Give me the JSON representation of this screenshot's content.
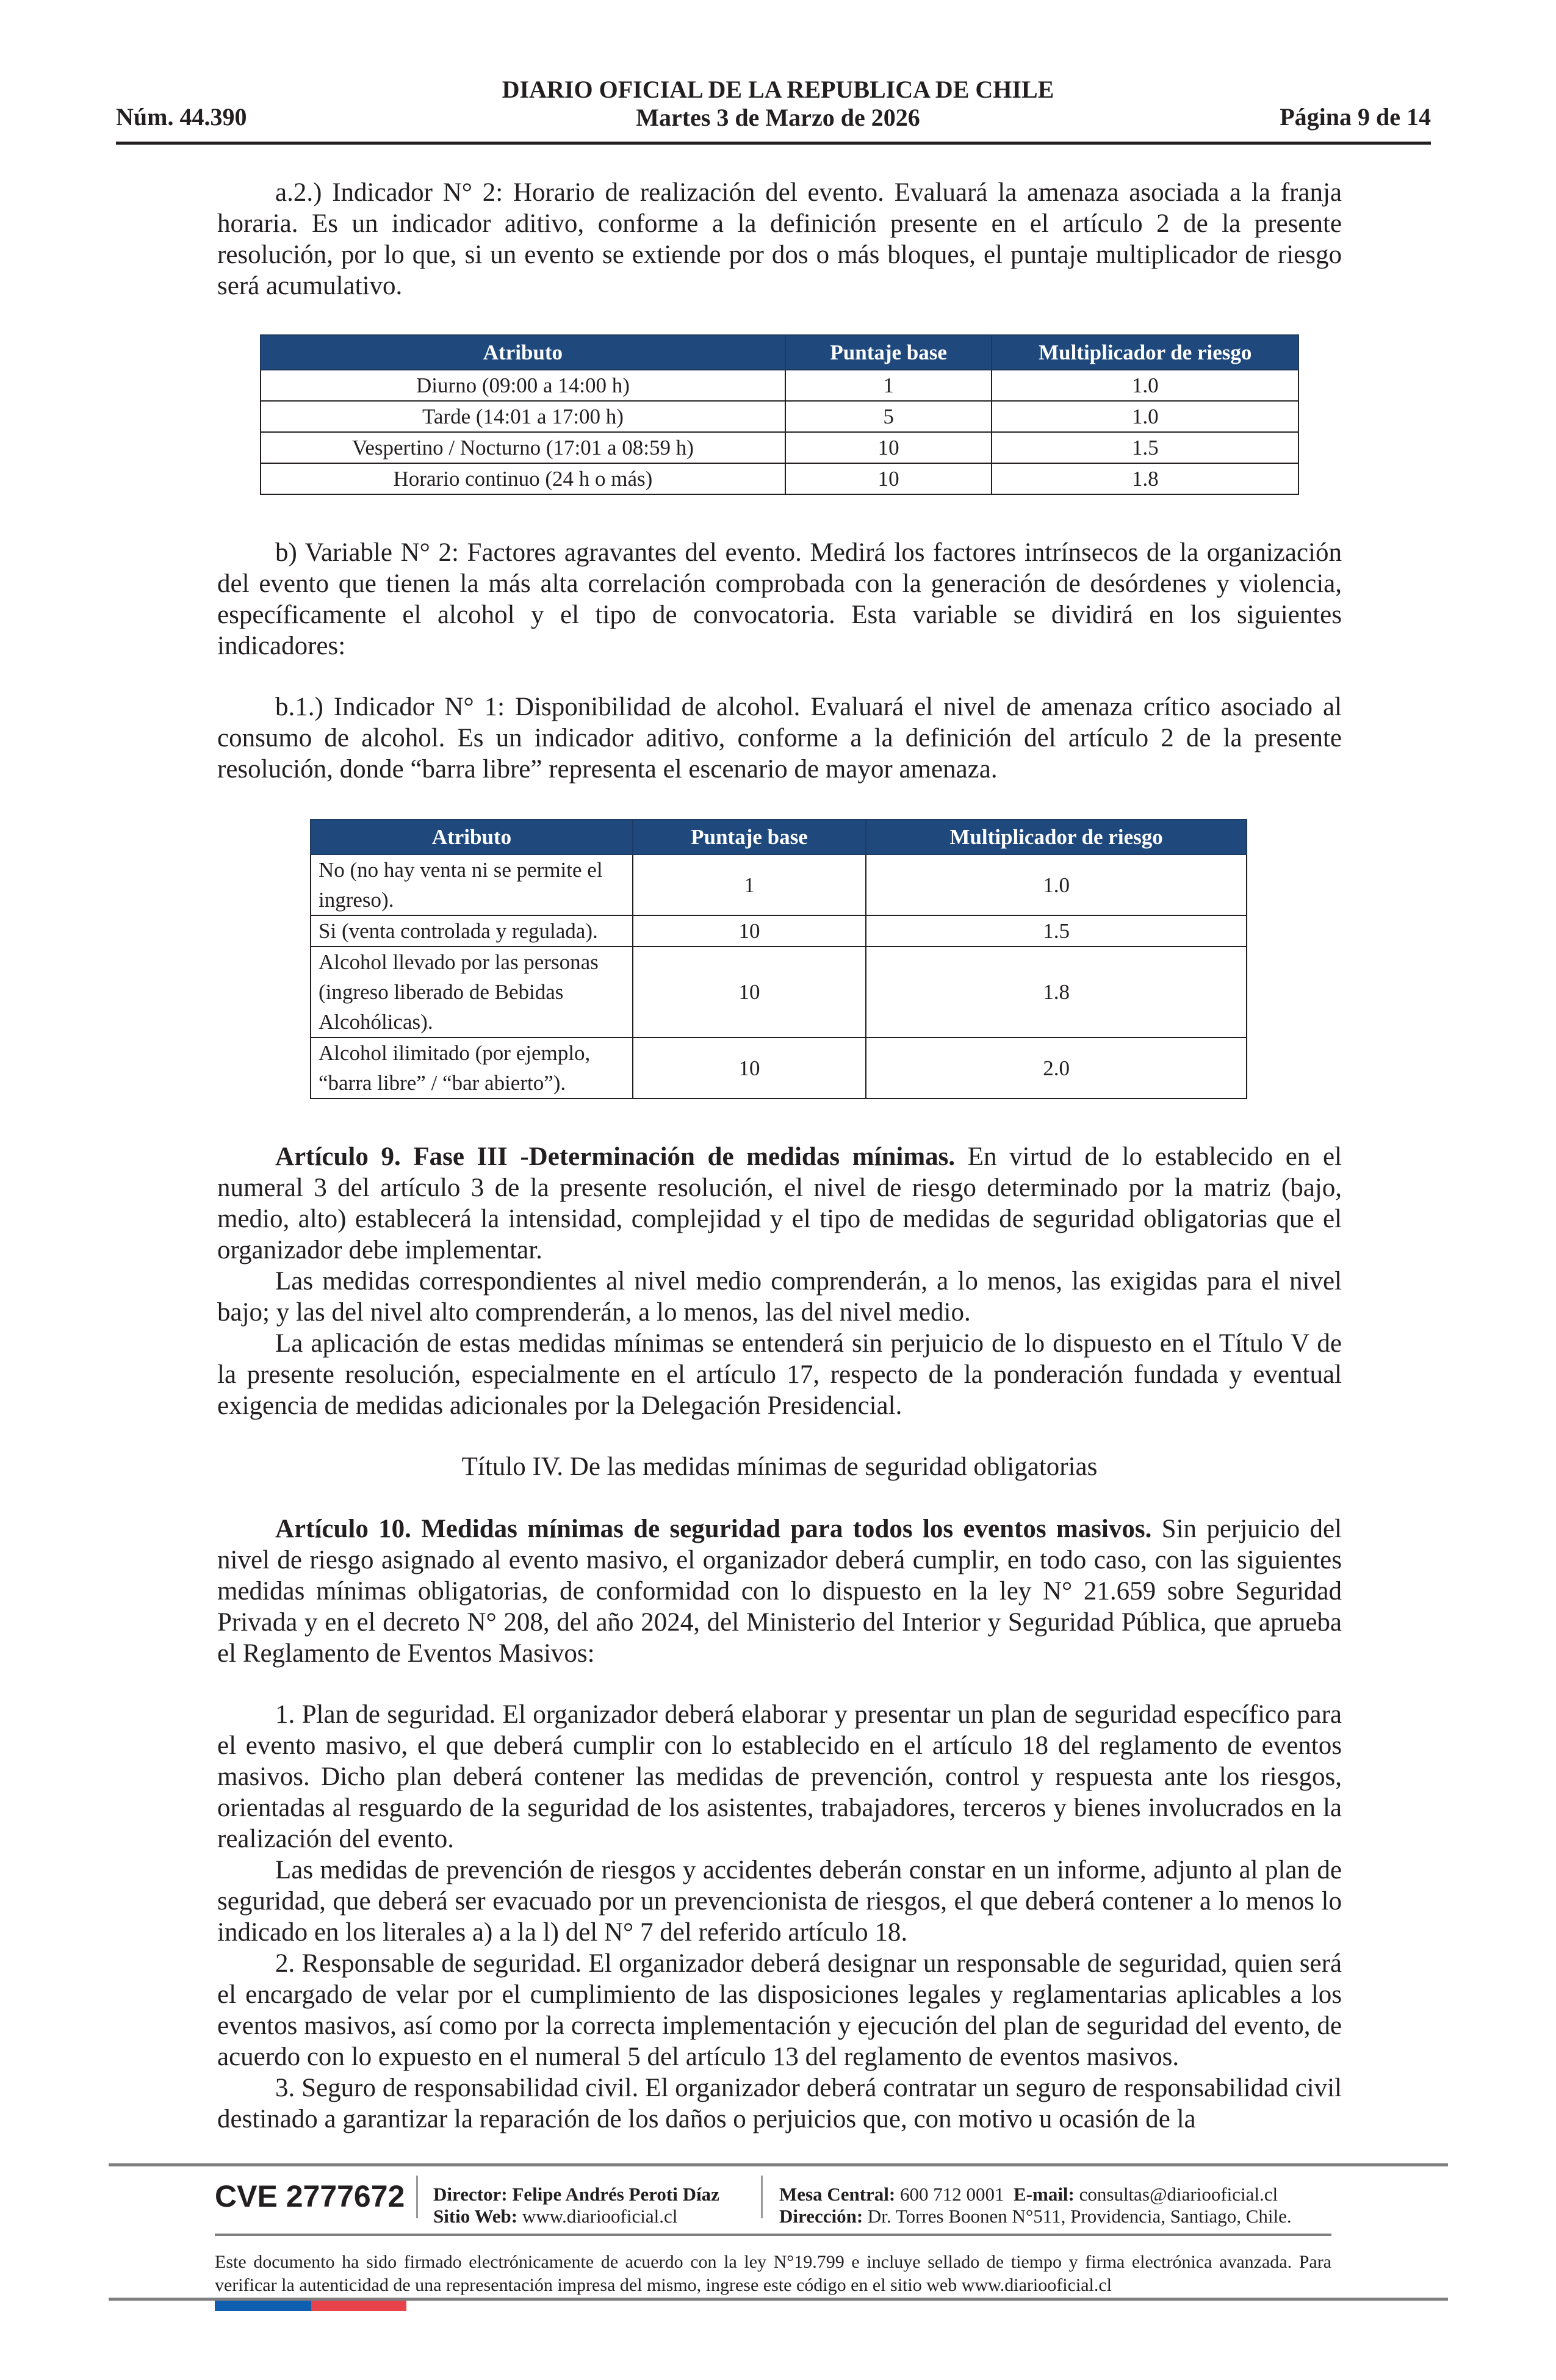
{
  "header": {
    "number": "Núm. 44.390",
    "title": "DIARIO OFICIAL DE LA REPUBLICA DE CHILE",
    "date": "Martes 3 de Marzo de 2026",
    "page": "Página 9 de 14"
  },
  "paragraphs": {
    "a2": "a.2.) Indicador N° 2: Horario de realización del evento. Evaluará la amenaza asociada a la franja horaria. Es un indicador aditivo, conforme a la definición presente en el artículo 2 de la presente resolución, por lo que, si un evento se extiende por dos o más bloques, el puntaje multiplicador de riesgo será acumulativo.",
    "b": "b)  Variable N° 2: Factores agravantes del evento. Medirá los factores intrínsecos de la organización del evento que tienen la más alta correlación comprobada con la generación de desórdenes y violencia, específicamente el alcohol y el tipo de convocatoria. Esta variable se dividirá en los siguientes indicadores:",
    "b1": "b.1.) Indicador N° 1: Disponibilidad de alcohol. Evaluará el nivel de amenaza crítico asociado al consumo de alcohol. Es un indicador aditivo, conforme a la definición del artículo 2 de la presente resolución, donde “barra libre” representa el escenario de mayor amenaza.",
    "art9_title": "Artículo 9. Fase III -Determinación de medidas mínimas.",
    "art9_body": " En virtud de lo establecido en el numeral 3 del artículo 3 de la presente resolución, el nivel de riesgo determinado por la matriz (bajo, medio, alto) establecerá la intensidad, complejidad y el tipo de medidas de seguridad obligatorias que el organizador debe implementar.",
    "art9_p2": "Las medidas correspondientes al nivel medio comprenderán, a lo menos, las exigidas para el nivel bajo; y las del nivel alto comprenderán, a lo menos, las del nivel medio.",
    "art9_p3": "La aplicación de estas medidas mínimas se entenderá sin perjuicio de lo dispuesto en el Título V de la presente resolución, especialmente en el artículo 17, respecto de la ponderación fundada y eventual exigencia de medidas adicionales por la Delegación Presidencial.",
    "titulo4": "Título IV. De las medidas mínimas de seguridad obligatorias",
    "art10_title": "Artículo 10. Medidas mínimas de seguridad para todos los eventos masivos.",
    "art10_body": " Sin perjuicio del nivel de riesgo asignado al evento masivo, el organizador deberá cumplir, en todo caso, con las siguientes medidas mínimas obligatorias, de conformidad con lo dispuesto en la ley N° 21.659 sobre Seguridad Privada y en el decreto N° 208, del año 2024, del Ministerio del Interior y Seguridad Pública, que aprueba el Reglamento de Eventos Masivos:",
    "item1": "1. Plan de seguridad. El organizador deberá elaborar y presentar un plan de seguridad específico para el evento masivo, el que deberá cumplir con lo establecido en el artículo 18 del reglamento de eventos masivos. Dicho plan deberá contener las medidas de prevención, control y respuesta ante los riesgos, orientadas al resguardo de la seguridad de los asistentes, trabajadores, terceros y bienes involucrados en la realización del evento.",
    "item1_p2": "Las medidas de prevención de riesgos y accidentes deberán constar en un informe, adjunto al plan de seguridad, que deberá ser evacuado por un prevencionista de riesgos, el que deberá contener a lo menos lo indicado en los literales a) a la l) del N° 7 del referido artículo 18.",
    "item2": "2. Responsable de seguridad. El organizador deberá designar un responsable de seguridad, quien será el encargado de velar por el cumplimiento de las disposiciones legales y reglamentarias aplicables a los eventos masivos, así como por la correcta implementación y ejecución del plan de seguridad del evento, de acuerdo con lo expuesto en el numeral 5 del artículo 13 del reglamento de eventos masivos.",
    "item3": "3. Seguro de responsabilidad civil. El organizador deberá contratar un seguro de responsabilidad civil destinado a garantizar la reparación de los daños o perjuicios que, con motivo u ocasión de la"
  },
  "table1": {
    "headers": [
      "Atributo",
      "Puntaje base",
      "Multiplicador de riesgo"
    ],
    "rows": [
      [
        "Diurno (09:00 a 14:00 h)",
        "1",
        "1.0"
      ],
      [
        "Tarde (14:01 a 17:00 h)",
        "5",
        "1.0"
      ],
      [
        "Vespertino / Nocturno (17:01 a 08:59 h)",
        "10",
        "1.5"
      ],
      [
        "Horario continuo (24 h o más)",
        "10",
        "1.8"
      ]
    ]
  },
  "table2": {
    "headers": [
      "Atributo",
      "Puntaje base",
      "Multiplicador de riesgo"
    ],
    "rows": [
      [
        "No (no hay venta ni se permite el ingreso).",
        "1",
        "1.0"
      ],
      [
        "Si (venta controlada y regulada).",
        "10",
        "1.5"
      ],
      [
        "Alcohol llevado por las personas (ingreso liberado de Bebidas Alcohólicas).",
        "10",
        "1.8"
      ],
      [
        "Alcohol ilimitado (por ejemplo, “barra libre” / “bar abierto”).",
        "10",
        "2.0"
      ]
    ]
  },
  "footer": {
    "cve": "CVE 2777672",
    "director_label": "Director:",
    "director": "Felipe Andrés Peroti Díaz",
    "web_label": "Sitio Web:",
    "web": "www.diariooficial.cl",
    "phone_label": "Mesa Central:",
    "phone": "600 712 0001",
    "email_label": "E-mail:",
    "email": "consultas@diariooficial.cl",
    "address_label": "Dirección:",
    "address": "Dr. Torres Boonen N°511, Providencia, Santiago, Chile.",
    "note": "Este documento ha sido firmado electrónicamente de acuerdo con la ley N°19.799 e incluye sellado de tiempo y firma electrónica avanzada. Para verificar la autenticidad de una representación impresa del mismo, ingrese este código en el sitio web www.diariooficial.cl"
  },
  "colors": {
    "table_header": "#1f497d",
    "flag_blue": "#0f5fb0",
    "flag_red": "#e8424a"
  }
}
